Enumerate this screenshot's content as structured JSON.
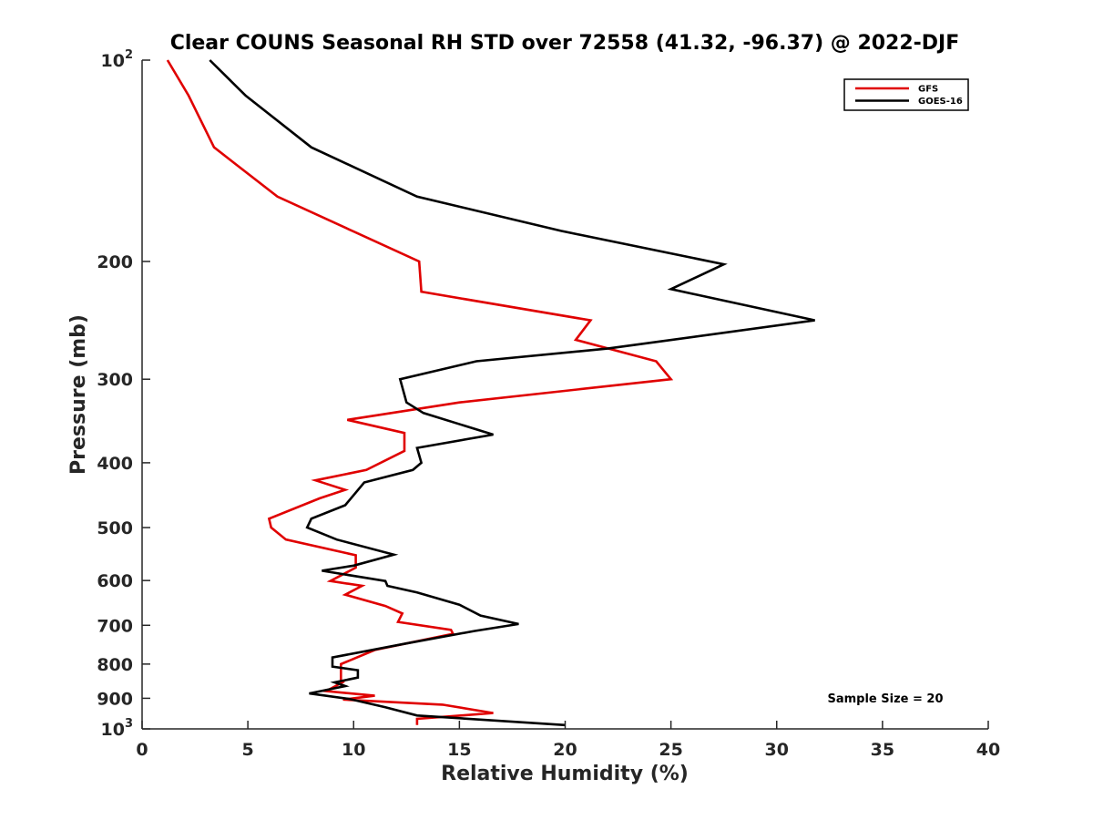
{
  "chart_data": {
    "type": "line",
    "title": "Clear COUNS Seasonal RH STD over 72558 (41.32, -96.37) @ 2022-DJF",
    "xlabel": "Relative Humidity (%)",
    "ylabel": "Pressure (mb)",
    "xlim": [
      0,
      40
    ],
    "ylim": [
      100,
      1000
    ],
    "yscale": "log",
    "y_reversed": true,
    "xticks": [
      0,
      5,
      10,
      15,
      20,
      25,
      30,
      35,
      40
    ],
    "xtick_labels": [
      "0",
      "5",
      "10",
      "15",
      "20",
      "25",
      "30",
      "35",
      "40"
    ],
    "yticks": [
      100,
      200,
      300,
      400,
      500,
      600,
      700,
      800,
      900,
      1000
    ],
    "ytick_labels": [
      {
        "base": "10",
        "exp": "2"
      },
      {
        "base": "200",
        "exp": ""
      },
      {
        "base": "300",
        "exp": ""
      },
      {
        "base": "400",
        "exp": ""
      },
      {
        "base": "500",
        "exp": ""
      },
      {
        "base": "600",
        "exp": ""
      },
      {
        "base": "700",
        "exp": ""
      },
      {
        "base": "800",
        "exp": ""
      },
      {
        "base": "900",
        "exp": ""
      },
      {
        "base": "10",
        "exp": "3"
      }
    ],
    "legend_position": "top-right",
    "annotation": "Sample Size = 20",
    "series": [
      {
        "name": "GFS",
        "color": "#e00000",
        "x": [
          1.2,
          2.2,
          3.4,
          6.4,
          13.1,
          13.2,
          21.2,
          20.5,
          24.3,
          25.0,
          15.0,
          9.7,
          12.4,
          12.4,
          10.6,
          8.2,
          9.6,
          8.4,
          6.0,
          6.1,
          6.8,
          10.1,
          10.1,
          8.9,
          10.4,
          9.6,
          11.5,
          12.3,
          12.1,
          14.6,
          14.7,
          11.0,
          9.4,
          9.4,
          9.5,
          8.7,
          11.0,
          9.5,
          14.2,
          16.6,
          13.0,
          13.0
        ],
        "y": [
          100,
          113,
          135,
          160,
          200,
          222,
          245,
          262,
          282,
          300,
          325,
          345,
          361,
          384,
          410,
          425,
          439,
          452,
          485,
          500,
          521,
          550,
          574,
          601,
          611,
          630,
          655,
          672,
          692,
          711,
          721,
          762,
          800,
          845,
          851,
          878,
          892,
          904,
          920,
          947,
          966,
          987
        ]
      },
      {
        "name": "GOES-16",
        "color": "#000000",
        "x": [
          3.2,
          4.9,
          8.0,
          13.0,
          19.8,
          27.5,
          25.0,
          31.8,
          22.0,
          15.8,
          12.2,
          12.5,
          13.3,
          16.6,
          13.0,
          13.2,
          12.8,
          10.5,
          9.6,
          8.0,
          7.8,
          9.2,
          11.9,
          10.0,
          8.5,
          11.5,
          11.6,
          13.0,
          15.0,
          16.0,
          17.8,
          15.7,
          12.5,
          9.0,
          9.0,
          10.2,
          10.2,
          9.1,
          9.6,
          7.9,
          9.8,
          11.5,
          13.0,
          20.0
        ],
        "y": [
          100,
          113,
          135,
          160,
          180,
          202,
          220,
          245,
          270,
          282,
          300,
          325,
          337,
          363,
          380,
          400,
          410,
          428,
          463,
          485,
          500,
          521,
          549,
          570,
          580,
          601,
          611,
          625,
          652,
          677,
          697,
          714,
          745,
          782,
          807,
          817,
          838,
          852,
          863,
          885,
          902,
          928,
          955,
          987
        ]
      }
    ]
  }
}
